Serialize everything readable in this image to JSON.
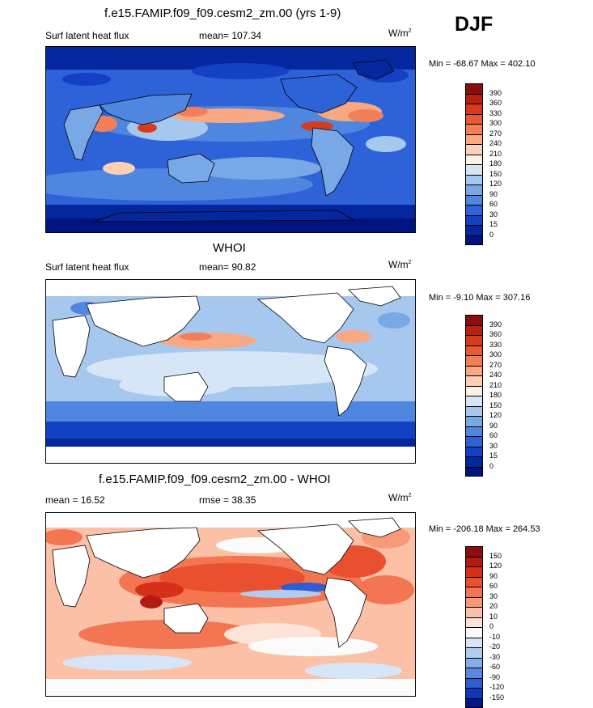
{
  "season": "DJF",
  "panels": [
    {
      "title": "f.e15.FAMIP.f09_f09.cesm2_zm.00 (yrs 1-9)",
      "left_label": "Surf latent heat flux",
      "mid_label": "mean= 107.34",
      "units": "W/m",
      "units_exp": "2",
      "minmax": "Min = -68.67 Max = 402.10",
      "levels": [
        "390",
        "360",
        "330",
        "300",
        "270",
        "240",
        "210",
        "180",
        "150",
        "120",
        "90",
        "60",
        "30",
        "15",
        "0"
      ],
      "colors": [
        "#8c0d0d",
        "#b82010",
        "#d83a1c",
        "#ea5a30",
        "#f37f58",
        "#f8a883",
        "#fbd0b6",
        "#fdf0e6",
        "#d7e6f7",
        "#a6c8ee",
        "#78a8e6",
        "#4f86e0",
        "#2e62d8",
        "#1440c4",
        "#05279e",
        "#001480"
      ]
    },
    {
      "title": "WHOI",
      "left_label": "Surf latent heat flux",
      "mid_label": "mean=  90.82",
      "units": "W/m",
      "units_exp": "2",
      "minmax": "Min =  -9.10 Max = 307.16",
      "levels": [
        "390",
        "360",
        "330",
        "300",
        "270",
        "240",
        "210",
        "180",
        "150",
        "120",
        "90",
        "60",
        "30",
        "15",
        "0"
      ],
      "colors": [
        "#8c0d0d",
        "#b82010",
        "#d83a1c",
        "#ea5a30",
        "#f37f58",
        "#f8a883",
        "#fbd0b6",
        "#fdf0e6",
        "#d7e6f7",
        "#a6c8ee",
        "#78a8e6",
        "#4f86e0",
        "#2e62d8",
        "#1440c4",
        "#05279e",
        "#001480"
      ]
    },
    {
      "title": "f.e15.FAMIP.f09_f09.cesm2_zm.00 - WHOI",
      "left_label": "mean =  16.52",
      "mid_label": "rmse =  38.35",
      "units": "W/m",
      "units_exp": "2",
      "minmax": "Min = -206.18 Max = 264.53",
      "levels": [
        "150",
        "120",
        "90",
        "60",
        "30",
        "20",
        "10",
        "0",
        "-10",
        "-20",
        "-30",
        "-60",
        "-90",
        "-120",
        "-150"
      ],
      "colors": [
        "#8c0d0d",
        "#b41b10",
        "#d6301a",
        "#ea5030",
        "#f37552",
        "#f89a7a",
        "#fbc0a6",
        "#fde4d8",
        "#fbfbfb",
        "#d6e6f8",
        "#b0cdf1",
        "#86ade8",
        "#5b88de",
        "#2f5ed2",
        "#0d36b8",
        "#00168a"
      ]
    }
  ],
  "chart_data": [
    {
      "type": "heatmap",
      "title": "f.e15.FAMIP.f09_f09.cesm2_zm.00 (yrs 1-9)",
      "variable": "Surf latent heat flux",
      "units": "W/m2",
      "mean": 107.34,
      "min": -68.67,
      "max": 402.1,
      "contour_levels": [
        0,
        15,
        30,
        60,
        90,
        120,
        150,
        180,
        210,
        240,
        270,
        300,
        330,
        360,
        390
      ]
    },
    {
      "type": "heatmap",
      "title": "WHOI",
      "variable": "Surf latent heat flux",
      "units": "W/m2",
      "mean": 90.82,
      "min": -9.1,
      "max": 307.16,
      "contour_levels": [
        0,
        15,
        30,
        60,
        90,
        120,
        150,
        180,
        210,
        240,
        270,
        300,
        330,
        360,
        390
      ]
    },
    {
      "type": "heatmap",
      "title": "f.e15.FAMIP.f09_f09.cesm2_zm.00 - WHOI",
      "units": "W/m2",
      "mean": 16.52,
      "rmse": 38.35,
      "min": -206.18,
      "max": 264.53,
      "contour_levels": [
        -150,
        -120,
        -90,
        -60,
        -30,
        -20,
        -10,
        0,
        10,
        20,
        30,
        60,
        90,
        120,
        150
      ]
    }
  ]
}
